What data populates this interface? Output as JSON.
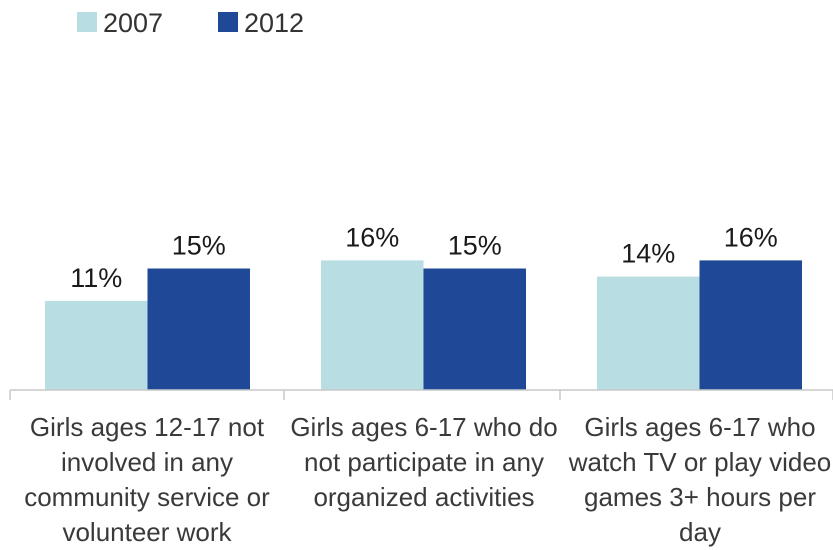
{
  "chart_data": {
    "type": "bar",
    "categories": [
      "Girls ages 12-17 not involved in any community service or volunteer work",
      "Girls ages 6-17 who do not participate in any organized activities",
      "Girls ages 6-17 who watch TV or play video games 3+ hours per day"
    ],
    "series": [
      {
        "name": "2007",
        "values": [
          11,
          16,
          14
        ],
        "labels": [
          "11%",
          "16%",
          "14%"
        ],
        "color": "#b8dde3"
      },
      {
        "name": "2012",
        "values": [
          15,
          15,
          16
        ],
        "labels": [
          "15%",
          "15%",
          "16%"
        ],
        "color": "#1f4896"
      }
    ],
    "ylim": [
      0,
      30
    ],
    "legend_position": "top-left",
    "grid": false
  }
}
